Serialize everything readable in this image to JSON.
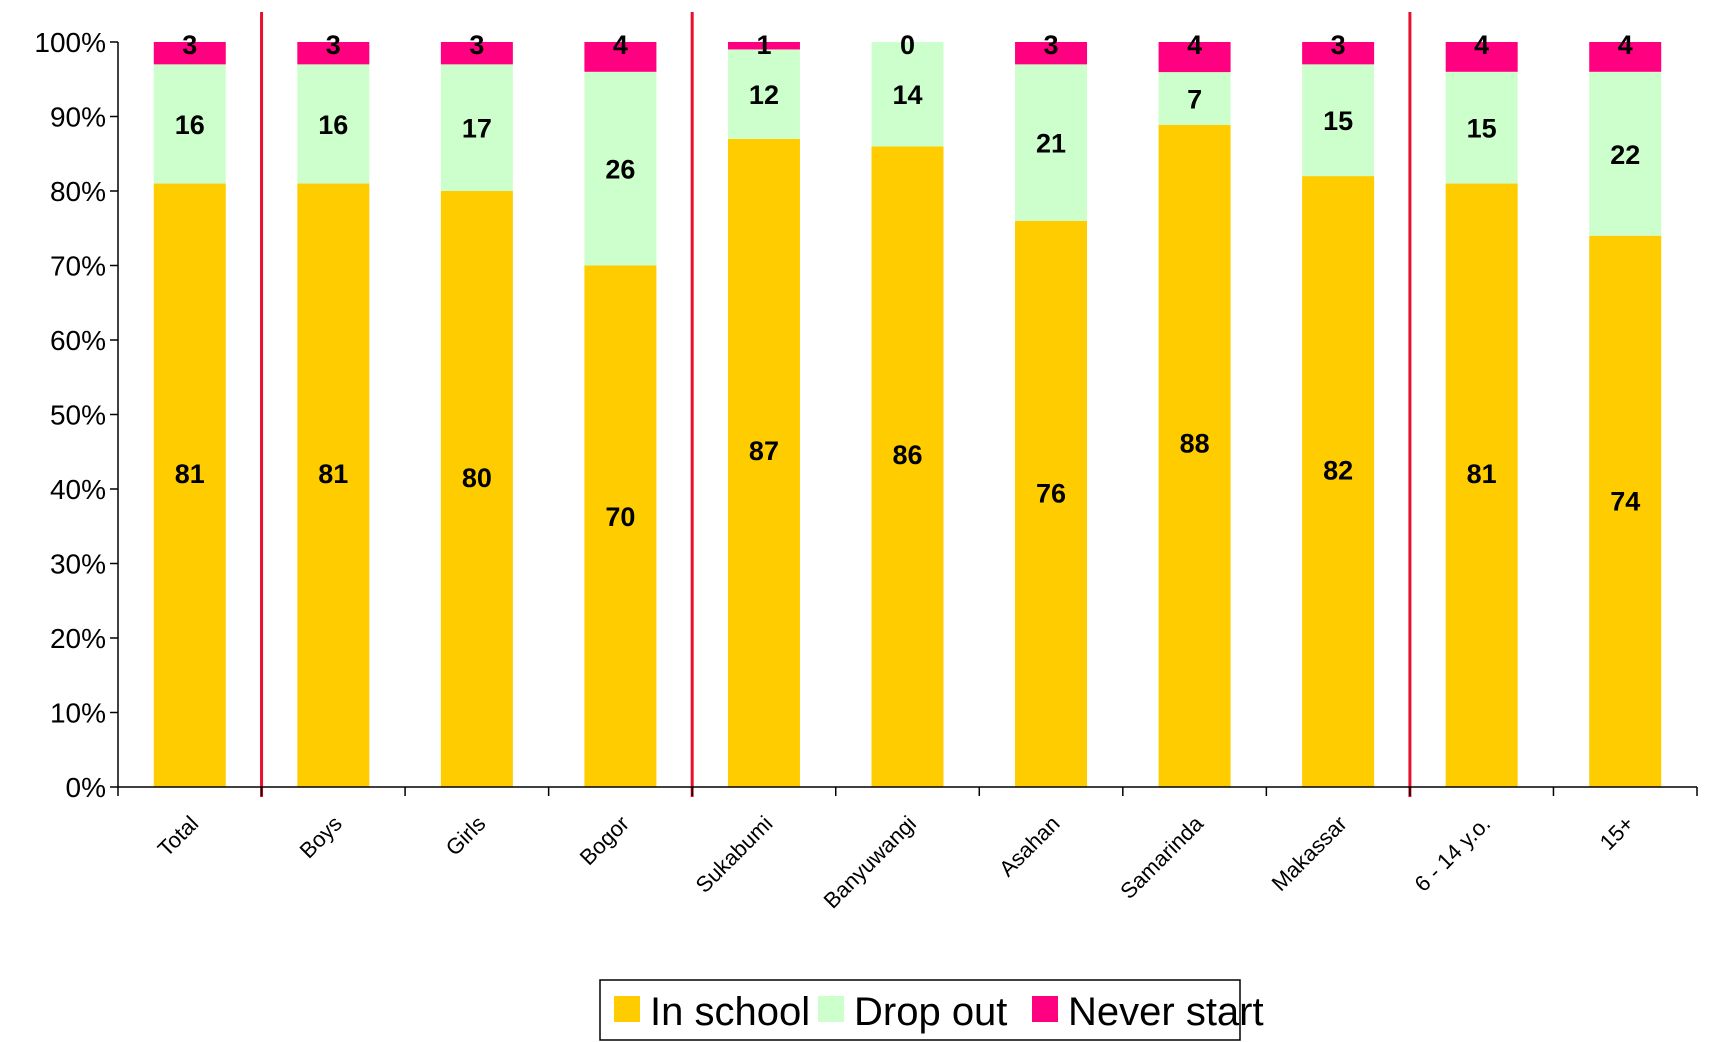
{
  "chart_data": {
    "type": "bar",
    "stacked": true,
    "percent_stacked": true,
    "categories": [
      "Total",
      "Boys",
      "Girls",
      "Bogor",
      "Sukabumi",
      "Banyuwangi",
      "Asahan",
      "Samarinda",
      "Makassar",
      "6 - 14 y.o.",
      "15+"
    ],
    "series": [
      {
        "name": "In school",
        "color": "#FFCC00",
        "values": [
          81,
          81,
          80,
          70,
          87,
          86,
          76,
          88,
          82,
          81,
          74
        ]
      },
      {
        "name": "Drop out",
        "color": "#CCFFCC",
        "values": [
          16,
          16,
          17,
          26,
          12,
          14,
          21,
          7,
          15,
          15,
          22
        ]
      },
      {
        "name": "Never start",
        "color": "#FF0080",
        "values": [
          3,
          3,
          3,
          4,
          1,
          0,
          3,
          4,
          3,
          4,
          4
        ]
      }
    ],
    "y_ticks": [
      "0%",
      "10%",
      "20%",
      "30%",
      "40%",
      "50%",
      "60%",
      "70%",
      "80%",
      "90%",
      "100%"
    ],
    "ylim": [
      0,
      100
    ],
    "separator_color": "#E8102E",
    "separators_after_categories": [
      "Total",
      "Bogor",
      "Makassar"
    ],
    "legend": {
      "position": "bottom",
      "entries": [
        "In school",
        "Drop out",
        "Never start"
      ]
    },
    "grid": false
  }
}
